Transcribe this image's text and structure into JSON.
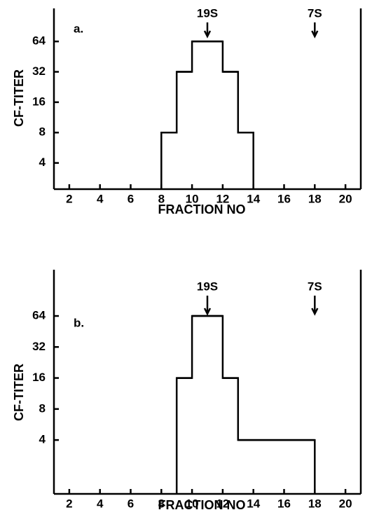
{
  "chart_data": [
    {
      "type": "histogram",
      "title": "a.",
      "ylabel": "CF-TITER",
      "xlabel": "FRACTION NO",
      "bins": [
        8,
        9,
        10,
        12,
        13,
        14
      ],
      "values": [
        8,
        32,
        64,
        32,
        8
      ],
      "color": "#000000",
      "xlim": [
        1,
        21
      ],
      "xticks": [
        2,
        4,
        6,
        8,
        10,
        12,
        14,
        16,
        18,
        20
      ],
      "ylim": [
        2.2,
        136
      ],
      "yticks": [
        4,
        8,
        16,
        32,
        64
      ],
      "ylog": 2,
      "annotations": [
        {
          "text": "19S",
          "x": 11
        },
        {
          "text": "7S",
          "x": 18
        }
      ]
    },
    {
      "type": "histogram",
      "title": "b.",
      "ylabel": "CF-TITER",
      "xlabel": "FRACTION NO",
      "bins": [
        9,
        10,
        12,
        13,
        18
      ],
      "values": [
        16,
        64,
        16,
        4
      ],
      "color": "#000000",
      "xlim": [
        1,
        21
      ],
      "xticks": [
        2,
        4,
        6,
        8,
        10,
        12,
        14,
        16,
        18,
        20
      ],
      "ylim": [
        1.2,
        180
      ],
      "yticks": [
        4,
        8,
        16,
        32,
        64
      ],
      "ylog": 2,
      "annotations": [
        {
          "text": "19S",
          "x": 11
        },
        {
          "text": "7S",
          "x": 18
        }
      ]
    }
  ]
}
